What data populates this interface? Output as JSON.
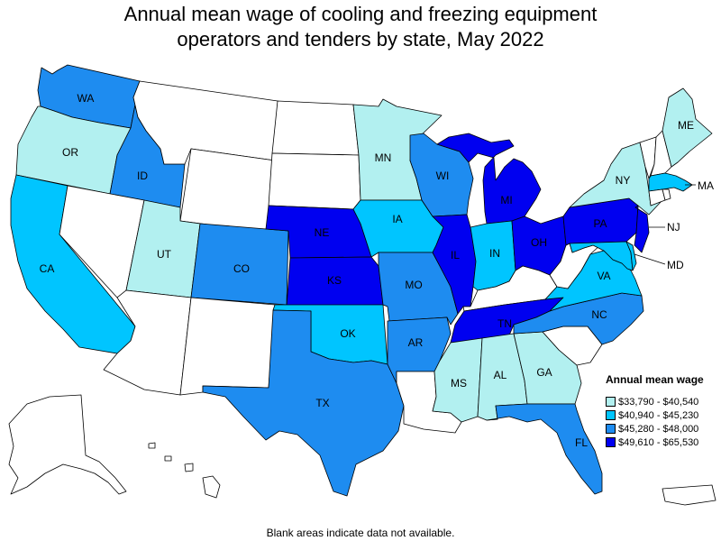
{
  "title_line1": "Annual mean wage of cooling and freezing equipment",
  "title_line2": "operators and tenders by state, May 2022",
  "footnote": "Blank areas indicate data not available.",
  "legend": {
    "title": "Annual mean wage",
    "items": [
      {
        "label": "$33,790 - $40,540",
        "color": "#b2f0f0"
      },
      {
        "label": "$40,940 - $45,230",
        "color": "#00c5ff"
      },
      {
        "label": "$45,280 - $48,000",
        "color": "#1e8cf0"
      },
      {
        "label": "$49,610 - $65,530",
        "color": "#0000f0"
      }
    ]
  },
  "no_data_color": "#ffffff",
  "states": {
    "WA": {
      "label": "WA",
      "cls": 3
    },
    "OR": {
      "label": "OR",
      "cls": 1
    },
    "CA": {
      "label": "CA",
      "cls": 2
    },
    "ID": {
      "label": "ID",
      "cls": 3
    },
    "NV": {
      "label": "",
      "cls": 0
    },
    "MT": {
      "label": "",
      "cls": 0
    },
    "WY": {
      "label": "",
      "cls": 0
    },
    "UT": {
      "label": "UT",
      "cls": 1
    },
    "AZ": {
      "label": "",
      "cls": 0
    },
    "CO": {
      "label": "CO",
      "cls": 3
    },
    "NM": {
      "label": "",
      "cls": 0
    },
    "ND": {
      "label": "",
      "cls": 0
    },
    "SD": {
      "label": "",
      "cls": 0
    },
    "NE": {
      "label": "NE",
      "cls": 4
    },
    "KS": {
      "label": "KS",
      "cls": 4
    },
    "OK": {
      "label": "OK",
      "cls": 2
    },
    "TX": {
      "label": "TX",
      "cls": 3
    },
    "MN": {
      "label": "MN",
      "cls": 1
    },
    "IA": {
      "label": "IA",
      "cls": 2
    },
    "MO": {
      "label": "MO",
      "cls": 3
    },
    "AR": {
      "label": "AR",
      "cls": 3
    },
    "LA": {
      "label": "",
      "cls": 0
    },
    "WI": {
      "label": "WI",
      "cls": 3
    },
    "IL": {
      "label": "IL",
      "cls": 4
    },
    "MI": {
      "label": "MI",
      "cls": 4
    },
    "IN": {
      "label": "IN",
      "cls": 2
    },
    "OH": {
      "label": "OH",
      "cls": 4
    },
    "KY": {
      "label": "",
      "cls": 0
    },
    "TN": {
      "label": "TN",
      "cls": 4
    },
    "MS": {
      "label": "MS",
      "cls": 1
    },
    "AL": {
      "label": "AL",
      "cls": 1
    },
    "GA": {
      "label": "GA",
      "cls": 1
    },
    "FL": {
      "label": "FL",
      "cls": 3
    },
    "SC": {
      "label": "",
      "cls": 0
    },
    "NC": {
      "label": "NC",
      "cls": 3
    },
    "VA": {
      "label": "VA",
      "cls": 2
    },
    "WV": {
      "label": "",
      "cls": 0
    },
    "PA": {
      "label": "PA",
      "cls": 4
    },
    "NY": {
      "label": "NY",
      "cls": 1
    },
    "NJ": {
      "label": "NJ",
      "cls": 4
    },
    "MD": {
      "label": "MD",
      "cls": 2
    },
    "DE": {
      "label": "",
      "cls": 2
    },
    "VT": {
      "label": "",
      "cls": 0
    },
    "NH": {
      "label": "",
      "cls": 0
    },
    "ME": {
      "label": "ME",
      "cls": 1
    },
    "MA": {
      "label": "MA",
      "cls": 2
    },
    "CT": {
      "label": "",
      "cls": 0
    },
    "RI": {
      "label": "",
      "cls": 0
    },
    "AK": {
      "label": "",
      "cls": 0
    },
    "HI": {
      "label": "",
      "cls": 0
    },
    "PR": {
      "label": "",
      "cls": 0
    }
  }
}
